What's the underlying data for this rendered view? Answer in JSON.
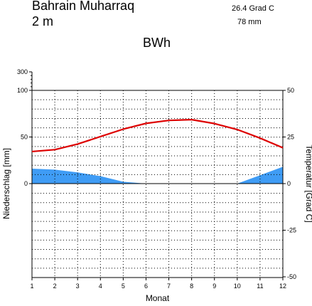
{
  "header": {
    "station": "Bahrain Muharraq",
    "elevation": "2  m",
    "mean_temp": "26.4 Grad C",
    "annual_precip": "78 mm",
    "climate_class": "BWh"
  },
  "chart_data": {
    "type": "line",
    "title": "",
    "xlabel": "Monat",
    "ylabel_left": "Niederschlag [mm]",
    "ylabel_right": "Temperatur [Grad C]",
    "x": [
      1,
      2,
      3,
      4,
      5,
      6,
      7,
      8,
      9,
      10,
      11,
      12
    ],
    "x_ticks": [
      "1",
      "2",
      "3",
      "4",
      "5",
      "6",
      "7",
      "8",
      "9",
      "10",
      "11",
      "12"
    ],
    "xlim": [
      1,
      12
    ],
    "precip_ticks": [
      "300",
      "100",
      "50",
      "0"
    ],
    "temp_ticks": [
      "50",
      "25",
      "0",
      "-25",
      "-50"
    ],
    "temp_ylim": [
      -50,
      50
    ],
    "precip_ylim": [
      0,
      100
    ],
    "grid": true,
    "series": [
      {
        "name": "",
        "kind": "temperature",
        "color": "#dd0000",
        "values": [
          17.2,
          18.2,
          21.2,
          25.2,
          29.2,
          32.3,
          33.9,
          34.3,
          32.2,
          29.0,
          24.4,
          19.2
        ]
      },
      {
        "name": "",
        "kind": "precipitation",
        "color": "#3f9cf5",
        "values": [
          16,
          15,
          12,
          8,
          2,
          0,
          0,
          0,
          0,
          0,
          9,
          18
        ]
      }
    ]
  }
}
